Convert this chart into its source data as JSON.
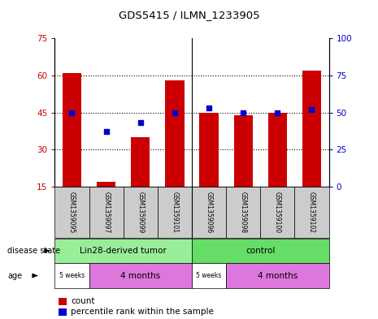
{
  "title": "GDS5415 / ILMN_1233905",
  "samples": [
    "GSM1359095",
    "GSM1359097",
    "GSM1359099",
    "GSM1359101",
    "GSM1359096",
    "GSM1359098",
    "GSM1359100",
    "GSM1359102"
  ],
  "counts": [
    61,
    17,
    35,
    58,
    45,
    44,
    45,
    62
  ],
  "percentile_ranks": [
    50,
    37,
    43,
    50,
    53,
    50,
    50,
    52
  ],
  "ylim_left": [
    15,
    75
  ],
  "ylim_right": [
    0,
    100
  ],
  "yticks_left": [
    15,
    30,
    45,
    60,
    75
  ],
  "yticks_right": [
    0,
    25,
    50,
    75,
    100
  ],
  "bar_color": "#cc0000",
  "dot_color": "#0000cc",
  "disease_state_groups": [
    {
      "label": "Lin28-derived tumor",
      "start": 0,
      "end": 4,
      "color": "#99ee99"
    },
    {
      "label": "control",
      "start": 4,
      "end": 8,
      "color": "#66dd66"
    }
  ],
  "age_groups": [
    {
      "label": "5 weeks",
      "start": 0,
      "end": 1,
      "color": "#ffffff"
    },
    {
      "label": "4 months",
      "start": 1,
      "end": 4,
      "color": "#dd77dd"
    },
    {
      "label": "5 weeks",
      "start": 4,
      "end": 5,
      "color": "#ffffff"
    },
    {
      "label": "4 months",
      "start": 5,
      "end": 8,
      "color": "#dd77dd"
    }
  ],
  "sample_bg_color": "#cccccc",
  "legend_count_color": "#cc0000",
  "legend_pct_color": "#0000cc",
  "left_ylabel_color": "#cc0000",
  "right_ylabel_color": "#0000cc"
}
